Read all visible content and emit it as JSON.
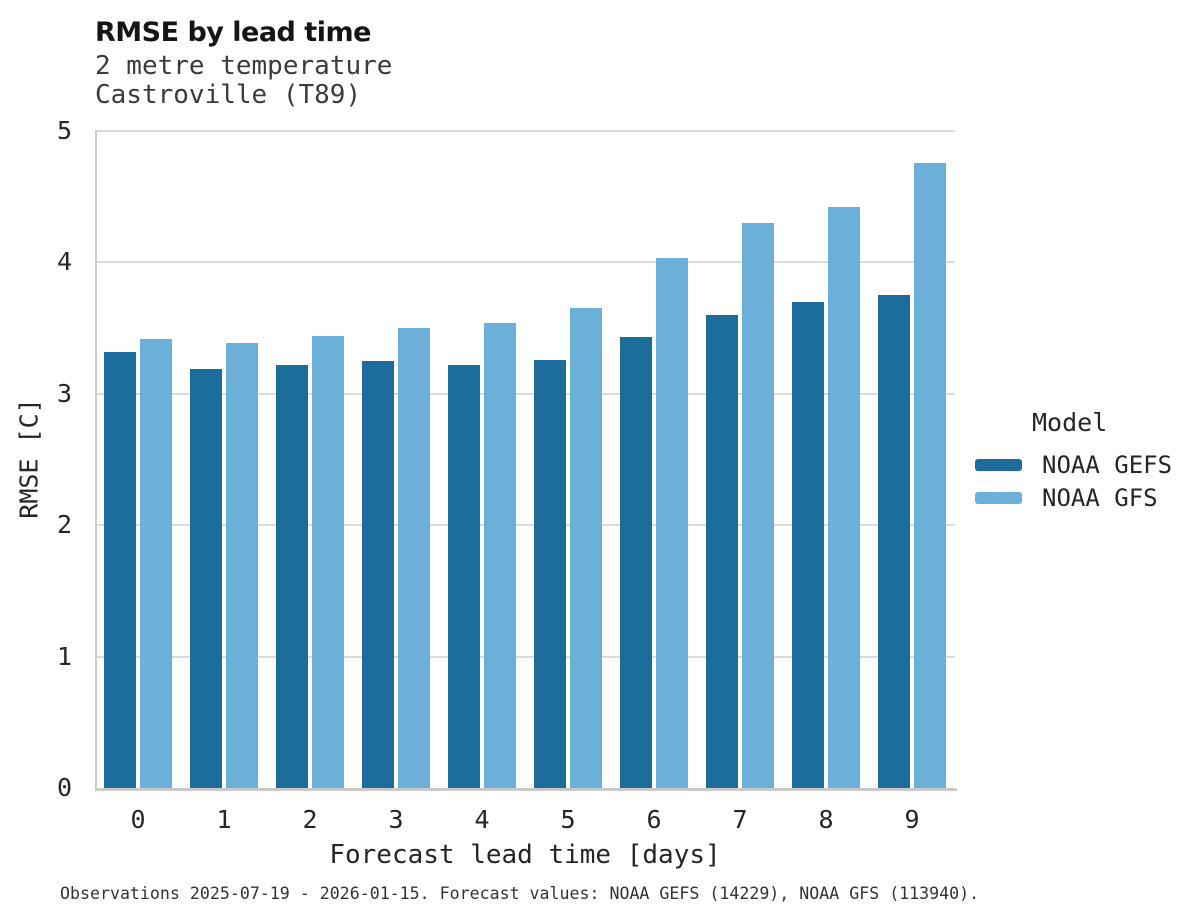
{
  "caption": "Observations 2025-07-19 - 2026-01-15. Forecast values: NOAA GEFS (14229), NOAA GFS (113940).",
  "chart_data": {
    "type": "bar",
    "title": "RMSE by lead time",
    "subtitle": [
      "2 metre temperature",
      "Castroville (T89)"
    ],
    "categories": [
      "0",
      "1",
      "2",
      "3",
      "4",
      "5",
      "6",
      "7",
      "8",
      "9"
    ],
    "series": [
      {
        "name": "NOAA GEFS",
        "color": "#1c6d9c",
        "values": [
          3.32,
          3.19,
          3.22,
          3.25,
          3.22,
          3.26,
          3.43,
          3.6,
          3.7,
          3.75
        ]
      },
      {
        "name": "NOAA GFS",
        "color": "#6ab0d9",
        "values": [
          3.42,
          3.39,
          3.44,
          3.5,
          3.54,
          3.65,
          4.03,
          4.3,
          4.42,
          4.76
        ]
      }
    ],
    "xlabel": "Forecast lead time [days]",
    "ylabel": "RMSE [C]",
    "ylim": [
      0,
      5
    ],
    "yticks": [
      0,
      1,
      2,
      3,
      4,
      5
    ],
    "grid": true,
    "grid_color": "#dadada",
    "background": "#ffffff",
    "legend": {
      "title": "Model",
      "position": "right"
    }
  }
}
